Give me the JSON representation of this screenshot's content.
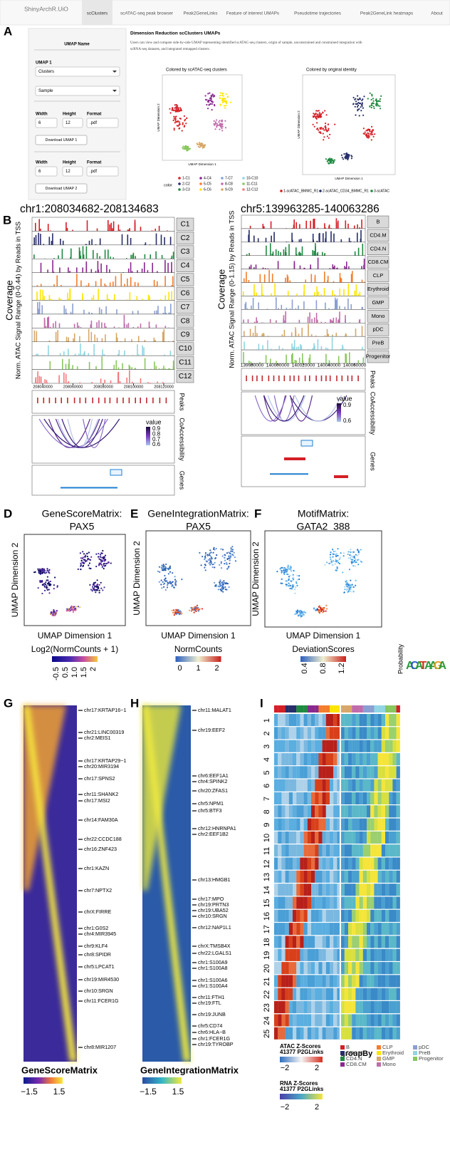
{
  "panel_labels": [
    "A",
    "B",
    "D",
    "E",
    "F",
    "G",
    "H",
    "I"
  ],
  "app": {
    "brand": "ShinyArchR.UiO",
    "tabs": [
      "scClusters",
      "scATAC-seq peak browser",
      "Peak2GeneLinks",
      "Feature of interest UMAPs",
      "Pseudotime trajectories",
      "Peak2GeneLink heatmaps",
      "About"
    ],
    "sidebar": {
      "umap_name": "UMAP Name",
      "umap1_label": "UMAP 1",
      "select1": "Clusters",
      "select2": "Sample",
      "width_label": "Width",
      "height_label": "Height",
      "format_label": "Format",
      "width": "6",
      "height": "12",
      "format": ".pdf",
      "button1": "Download UMAP 1",
      "button2": "Download UMAP 2"
    },
    "heading": "Dimension Reduction scClusters UMAPs",
    "description": [
      "Users can view and compare side-by-side UMAP representing identified scATAC-seq clusters, origin of sample, unconstrained and constrained integration with",
      "scRNA-seq datasets, and integrated remapped clusters."
    ],
    "plots": [
      {
        "title": "Colored by scATAC-seq clusters",
        "xlabel": "UMAP Dimension 1",
        "ylabel": "UMAP Dimension 2"
      },
      {
        "title": "Colored by original identity",
        "xlabel": "UMAP Dimension 1",
        "ylabel": "UMAP Dimension 2"
      }
    ],
    "legend1": {
      "title": "color",
      "items": [
        "1-C1",
        "2-C2",
        "3-C3",
        "4-C4",
        "5-C5",
        "6-C6",
        "7-C7",
        "8-C8",
        "9-C9",
        "10-C10",
        "11-C11",
        "12-C12"
      ]
    },
    "legend2": {
      "items": [
        "1-scATAC_BMMC_R1",
        "2-scATAC_CD34_BMMC_R1",
        "3-scATAC"
      ]
    }
  },
  "browser": [
    {
      "region": "chr1:208034682-208134683",
      "coverage": "Coverage",
      "ylabel": "Norm. ATAC Signal Range (0-0.44) by Reads in TSS",
      "tracks": [
        "C1",
        "C2",
        "C3",
        "C4",
        "C5",
        "C6",
        "C7",
        "C8",
        "C9",
        "C10",
        "C11",
        "C12"
      ],
      "xticks": [
        "208040000",
        "208060000",
        "208080000",
        "208100000",
        "208120000"
      ],
      "peaks": "Peaks",
      "coaccess": "CoAccessibility",
      "genes": "Genes",
      "legend_title": "value",
      "legend_ticks": [
        "0.9",
        "0.8",
        "0.7",
        "0.6"
      ]
    },
    {
      "region": "chr5:139963285-140063286",
      "coverage": "Coverage",
      "ylabel": "Norm. ATAC Signal Range (0-1.15) by Reads in TSS",
      "tracks": [
        "B",
        "CD4.M",
        "CD4.N",
        "CD8.CM",
        "CLP",
        "Erythroid",
        "GMP",
        "Mono",
        "pDC",
        "PreB",
        "Progenitor"
      ],
      "xticks": [
        "139980000",
        "140000000",
        "140020000",
        "140040000",
        "140060000"
      ],
      "peaks": "Peaks",
      "coaccess": "CoAccessibility",
      "genes": "Genes",
      "legend_title": "value",
      "legend_ticks": [
        "0.9",
        "0.6"
      ]
    }
  ],
  "umaps": [
    {
      "title": [
        "GeneScoreMatrix:",
        "PAX5"
      ],
      "xlabel": "UMAP Dimension 1",
      "ylabel": "UMAP Dimension 2",
      "legend_title": "Log2(NormCounts + 1)",
      "legend_ticks": [
        "-0.5",
        "0.5",
        "1.0",
        "1.5",
        "2"
      ]
    },
    {
      "title": [
        "GeneIntegrationMatrix:",
        "PAX5"
      ],
      "xlabel": "UMAP Dimension 1",
      "ylabel": "UMAP Dimension 2",
      "legend_title": "NormCounts",
      "legend_ticks": [
        "0",
        "1",
        "2"
      ]
    },
    {
      "title": [
        "MotifMatrix:",
        "GATA2_388"
      ],
      "xlabel": "UMAP Dimension 1",
      "ylabel": "UMAP Dimension 2",
      "legend_title": "DeviationScores",
      "legend_ticks": [
        "0.4",
        "0.8",
        "1.2"
      ],
      "logo_label": "Probability"
    }
  ],
  "heatmaps": {
    "G": {
      "genes": [
        "chr17:KRTAP16−1",
        "chr21:LINC00319",
        "chr2:MEIS1",
        "chr17:KRTAP29−1",
        "chr20:MIR3194",
        "chr17:SPNS2",
        "chr11:SHANK2",
        "chr17:MSI2",
        "chr14:FAM30A",
        "chr22:CCDC188",
        "chr16:ZNF423",
        "chr1:KAZN",
        "chr7:NPTX2",
        "chrX:FIRRE",
        "chr1:G0S2",
        "chr4:MIR3945",
        "chr9:KLF4",
        "chr8:SPIDR",
        "chr5:LPCAT1",
        "chr19:MIR4530",
        "chr10:SRGN",
        "chr11:FCER1G",
        "chr8:MIR1207"
      ],
      "scale_title": "GeneScoreMatrix",
      "ticks": [
        "−1.5",
        "1.5"
      ]
    },
    "H": {
      "genes": [
        "chr11:MALAT1",
        "chr19:EEF2",
        "chr6:EEF1A1",
        "chr4:SPINK2",
        "chr20:ZFAS1",
        "chr5:NPM1",
        "chr5:BTF3",
        "chr12:HNRNPA1",
        "chr2:EEF1B2",
        "chr13:HMGB1",
        "chr17:MPO",
        "chr19:PRTN3",
        "chr19:UBA52",
        "chr10:SRGN",
        "chr12:NAP1L1",
        "chrX:TMSB4X",
        "chr22:LGALS1",
        "chr1:S100A9",
        "chr1:S100A8",
        "chr1:S100A6",
        "chr1:S100A4",
        "chr11:FTH1",
        "chr19:FTL",
        "chr19:JUNB",
        "chr5:CD74",
        "chr6:HLA−B",
        "chr1:FCER1G",
        "chr19:TYROBP"
      ],
      "scale_title": "GeneIntegrationMatrix",
      "ticks": [
        "−1.5",
        "1.5"
      ]
    },
    "I": {
      "rows": [
        "1",
        "2",
        "3",
        "4",
        "5",
        "6",
        "7",
        "8",
        "9",
        "10",
        "11",
        "12",
        "13",
        "14",
        "15",
        "16",
        "17",
        "18",
        "19",
        "20",
        "21",
        "22",
        "23",
        "24",
        "25"
      ],
      "atac_title": "ATAC Z-Scores",
      "atac_links": "41377 P2GLinks",
      "rna_title": "RNA Z-Scores",
      "rna_links": "41377 P2GLinks",
      "ticks": [
        "−2",
        "2"
      ],
      "group_title": "groupBy",
      "groups": [
        "B",
        "CD4.M",
        "CD4.N",
        "CD8.CM",
        "CLP",
        "Erythroid",
        "GMP",
        "Mono",
        "pDC",
        "PreB",
        "Progenitor"
      ]
    }
  }
}
